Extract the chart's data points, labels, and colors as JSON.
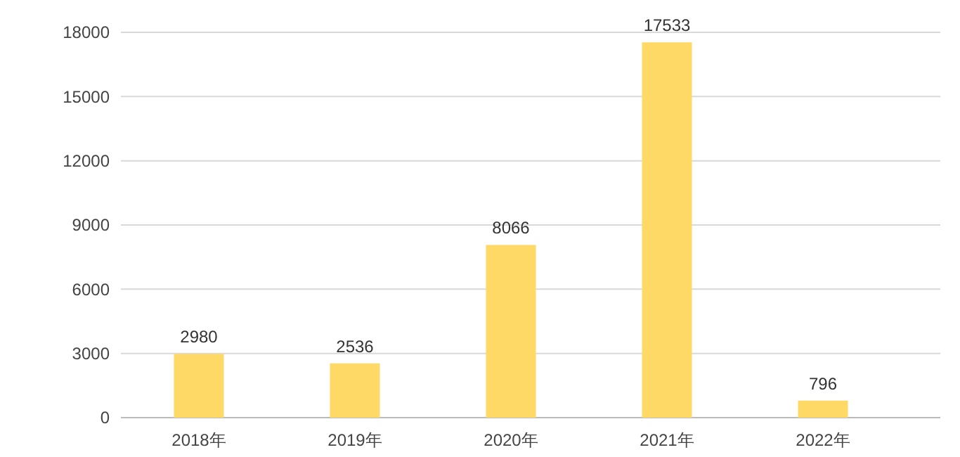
{
  "chart_data": {
    "type": "bar",
    "categories": [
      "2018年",
      "2019年",
      "2020年",
      "2021年",
      "2022年"
    ],
    "values": [
      2980,
      2536,
      8066,
      17533,
      796
    ],
    "color": "#ffd966",
    "ylim": [
      0,
      18000
    ],
    "yticks": [
      0,
      3000,
      6000,
      9000,
      12000,
      15000,
      18000
    ],
    "grid": "y",
    "data_labels": true
  }
}
